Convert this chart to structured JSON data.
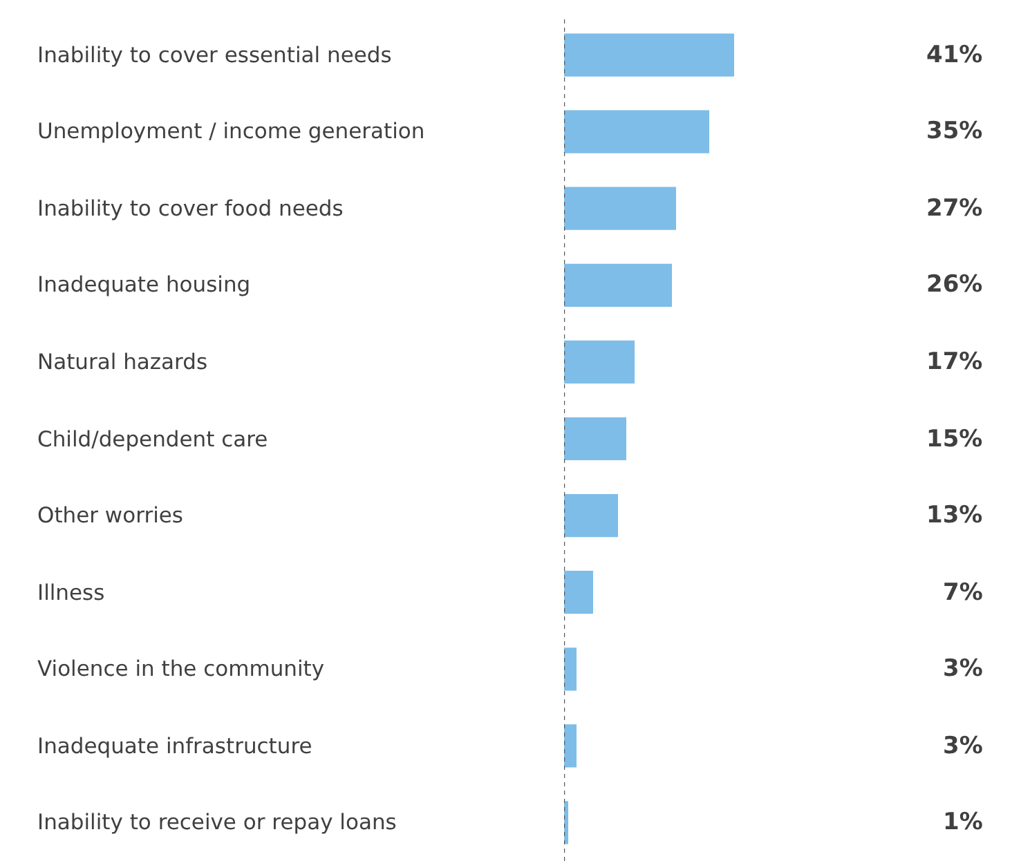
{
  "chart_data": {
    "type": "bar",
    "orientation": "horizontal",
    "categories": [
      "Inability to cover essential needs",
      "Unemployment / income generation",
      "Inability to cover food needs",
      "Inadequate housing",
      "Natural hazards",
      "Child/dependent care",
      "Other worries",
      "Illness",
      "Violence in the community",
      "Inadequate infrastructure",
      "Inability to receive or repay loans"
    ],
    "values": [
      41,
      35,
      27,
      26,
      17,
      15,
      13,
      7,
      3,
      3,
      1
    ],
    "value_labels": [
      "41%",
      "35%",
      "27%",
      "26%",
      "17%",
      "15%",
      "13%",
      "7%",
      "3%",
      "3%",
      "1%"
    ],
    "color": "#7dbde8",
    "grid": false,
    "legend": false
  }
}
